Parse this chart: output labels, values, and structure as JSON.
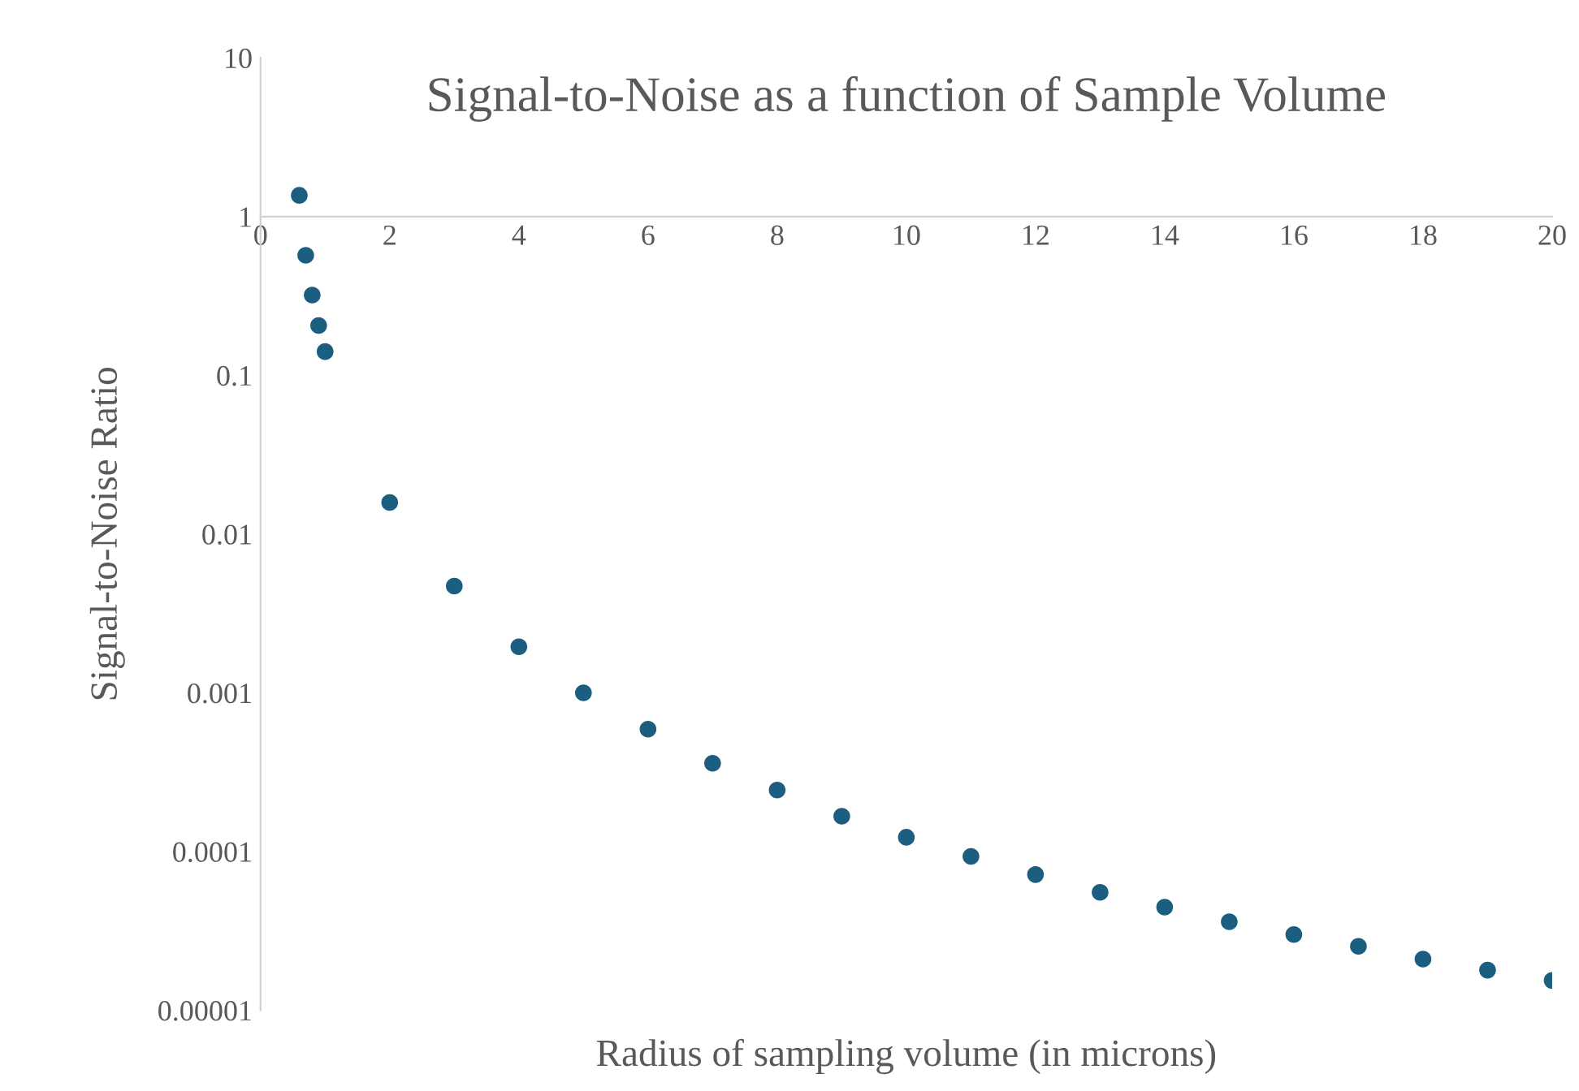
{
  "chart_data": {
    "type": "scatter",
    "title": "Signal-to-Noise as a function of Sample Volume",
    "xlabel": "Radius of sampling volume (in microns)",
    "ylabel": "Signal-to-Noise Ratio",
    "log": "y",
    "marker": "circle",
    "series": [
      {
        "color": "#1b5e80",
        "x": [
          0.6,
          0.7,
          0.8,
          0.9,
          1,
          2,
          3,
          4,
          5,
          6,
          7,
          8,
          9,
          10,
          11,
          12,
          13,
          14,
          15,
          16,
          17,
          18,
          19,
          20
        ],
        "values": [
          1.36,
          0.57,
          0.32,
          0.206,
          0.141,
          0.0158,
          0.0047,
          0.00195,
          0.001,
          0.00059,
          0.00036,
          0.000244,
          0.000167,
          0.000123,
          9.32e-05,
          7.16e-05,
          5.53e-05,
          4.46e-05,
          3.61e-05,
          3e-05,
          2.53e-05,
          2.1e-05,
          1.79e-05,
          1.54e-05
        ]
      }
    ],
    "xlim": [
      0,
      20
    ],
    "xticks": [
      0,
      2,
      4,
      6,
      8,
      10,
      12,
      14,
      16,
      18,
      20
    ],
    "ylim": [
      1e-05,
      10
    ],
    "yticks": [
      {
        "value": 1e-05,
        "label": "0.00001"
      },
      0.0001,
      0.001,
      0.01,
      0.1,
      1,
      10
    ]
  }
}
